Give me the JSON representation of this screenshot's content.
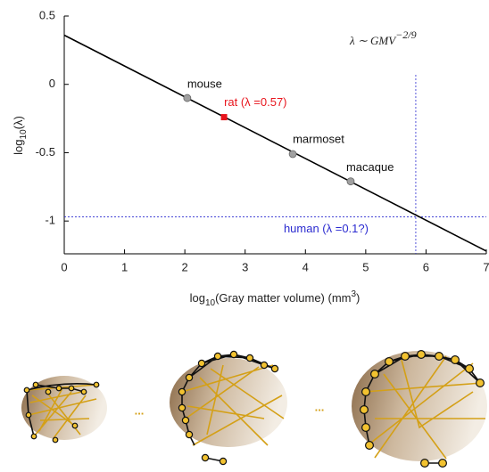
{
  "chart_data": {
    "type": "scatter",
    "x": [
      2.04,
      2.65,
      3.79,
      4.75
    ],
    "values": [
      -0.1,
      -0.24,
      -0.51,
      -0.71
    ],
    "point_labels": [
      "mouse",
      "rat (λ =0.57)",
      "marmoset",
      "macaque"
    ],
    "marker_colors": [
      "#a0a0a0",
      "#e8141c",
      "#a0a0a0",
      "#a0a0a0"
    ],
    "label_colors": [
      "#111111",
      "#e8141c",
      "#111111",
      "#111111"
    ],
    "fit_line": {
      "x": [
        0,
        7
      ],
      "values": [
        0.36,
        -1.22
      ],
      "color": "#000000"
    },
    "reference": {
      "x": 5.83,
      "y": -0.97,
      "label": "human (λ =0.1?)",
      "color": "#2b2bd0"
    },
    "formula": {
      "base": "λ ∼ GMV",
      "exponent": "−2/9"
    },
    "xlabel": {
      "prefix": "log",
      "sub": "10",
      "main": "(Gray matter volume) (mm",
      "sup": "3",
      "end": ")"
    },
    "ylabel": {
      "prefix": "log",
      "sub": "10",
      "main": "(λ)"
    },
    "xlim": [
      0,
      7
    ],
    "xticks": [
      0,
      1,
      2,
      3,
      4,
      5,
      6,
      7
    ],
    "ylim": [
      -1.24,
      0.5
    ],
    "yticks": [
      0.5,
      0,
      -0.5,
      -1
    ]
  },
  "illustration": {
    "separators": [
      "...",
      "..."
    ]
  }
}
